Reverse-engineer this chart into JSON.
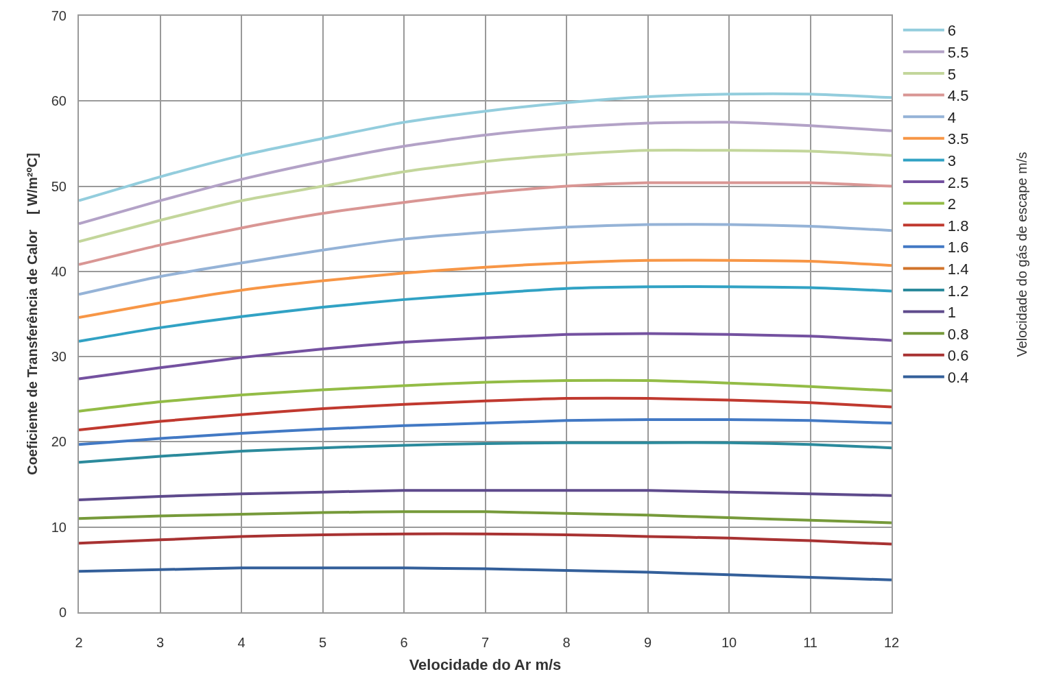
{
  "chart_data": {
    "type": "line",
    "xlabel": "Velocidade do Ar m/s",
    "ylabel": "Coeficiente de Transferência de Calor    [ W/m²ºC]",
    "legend_title": "Velocidade do gás de escape m/s",
    "x": [
      2,
      3,
      4,
      5,
      6,
      7,
      8,
      9,
      10,
      11,
      12
    ],
    "xlim": [
      2,
      12
    ],
    "xticks": [
      2,
      3,
      4,
      5,
      6,
      7,
      8,
      9,
      10,
      11,
      12
    ],
    "ylim": [
      0,
      70
    ],
    "yticks": [
      0,
      10,
      20,
      30,
      40,
      50,
      60,
      70
    ],
    "grid": true,
    "legend": "right",
    "marker": "none",
    "line_style": "solid",
    "series": [
      {
        "name": "6",
        "color": "#93cddd",
        "values": [
          48.3,
          51.1,
          53.6,
          55.6,
          57.5,
          58.8,
          59.8,
          60.5,
          60.8,
          60.8,
          60.4
        ]
      },
      {
        "name": "5.5",
        "color": "#b3a2c7",
        "values": [
          45.6,
          48.3,
          50.8,
          52.9,
          54.7,
          56.0,
          56.9,
          57.4,
          57.5,
          57.1,
          56.5
        ]
      },
      {
        "name": "5",
        "color": "#c3d69b",
        "values": [
          43.5,
          46.0,
          48.3,
          50.0,
          51.7,
          52.9,
          53.7,
          54.2,
          54.2,
          54.1,
          53.6
        ]
      },
      {
        "name": "4.5",
        "color": "#d99694",
        "values": [
          40.8,
          43.1,
          45.1,
          46.8,
          48.1,
          49.2,
          50.0,
          50.4,
          50.4,
          50.4,
          50.0
        ]
      },
      {
        "name": "4",
        "color": "#95b3d7",
        "values": [
          37.3,
          39.4,
          41.0,
          42.5,
          43.8,
          44.6,
          45.2,
          45.5,
          45.5,
          45.3,
          44.8
        ]
      },
      {
        "name": "3.5",
        "color": "#f79646",
        "values": [
          34.6,
          36.3,
          37.8,
          38.9,
          39.8,
          40.5,
          41.0,
          41.3,
          41.3,
          41.2,
          40.7
        ]
      },
      {
        "name": "3",
        "color": "#31a2c4",
        "values": [
          31.8,
          33.4,
          34.7,
          35.8,
          36.7,
          37.4,
          38.0,
          38.2,
          38.2,
          38.1,
          37.7
        ]
      },
      {
        "name": "2.5",
        "color": "#7451a0",
        "values": [
          27.4,
          28.7,
          29.9,
          30.9,
          31.7,
          32.2,
          32.6,
          32.7,
          32.6,
          32.4,
          31.9
        ]
      },
      {
        "name": "2",
        "color": "#93bc46",
        "values": [
          23.6,
          24.7,
          25.5,
          26.1,
          26.6,
          27.0,
          27.2,
          27.2,
          26.9,
          26.5,
          26.0
        ]
      },
      {
        "name": "1.8",
        "color": "#c0392f",
        "values": [
          21.4,
          22.4,
          23.2,
          23.9,
          24.4,
          24.8,
          25.1,
          25.1,
          24.9,
          24.6,
          24.1
        ]
      },
      {
        "name": "1.6",
        "color": "#4279c4",
        "values": [
          19.7,
          20.4,
          21.0,
          21.5,
          21.9,
          22.2,
          22.5,
          22.6,
          22.6,
          22.5,
          22.2
        ]
      },
      {
        "name": "1.4",
        "color": "#d1742b",
        "values": [
          null,
          null,
          null,
          null,
          null,
          null,
          null,
          null,
          null,
          null,
          null
        ]
      },
      {
        "name": "1.2",
        "color": "#2b8a9c",
        "values": [
          17.6,
          18.3,
          18.9,
          19.3,
          19.6,
          19.8,
          19.9,
          19.9,
          19.9,
          19.7,
          19.3
        ]
      },
      {
        "name": "1",
        "color": "#5e4a8c",
        "values": [
          13.2,
          13.6,
          13.9,
          14.1,
          14.3,
          14.3,
          14.3,
          14.3,
          14.1,
          13.9,
          13.7
        ]
      },
      {
        "name": "0.8",
        "color": "#769a3a",
        "values": [
          11.0,
          11.3,
          11.5,
          11.7,
          11.8,
          11.8,
          11.6,
          11.4,
          11.1,
          10.8,
          10.5
        ]
      },
      {
        "name": "0.6",
        "color": "#a83232",
        "values": [
          8.1,
          8.5,
          8.9,
          9.1,
          9.2,
          9.2,
          9.1,
          8.9,
          8.7,
          8.4,
          8.0
        ]
      },
      {
        "name": "0.4",
        "color": "#335f9a",
        "values": [
          4.8,
          5.0,
          5.2,
          5.2,
          5.2,
          5.1,
          4.9,
          4.7,
          4.4,
          4.1,
          3.8
        ]
      }
    ]
  }
}
